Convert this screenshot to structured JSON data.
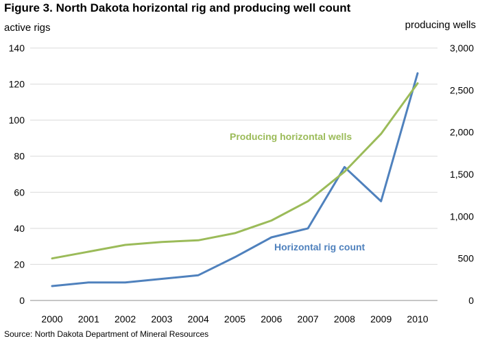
{
  "chart_data": {
    "type": "line",
    "title": "Figure 3. North Dakota horizontal rig and producing well count",
    "ylabel_left": "active rigs",
    "ylabel_right": "producing wells",
    "source": "Source:  North Dakota Department of Mineral Resources",
    "x": [
      "2000",
      "2001",
      "2002",
      "2003",
      "2004",
      "2005",
      "2006",
      "2007",
      "2008",
      "2009",
      "2010"
    ],
    "ylim_left": [
      0,
      140
    ],
    "ylim_right": [
      0,
      3000
    ],
    "yticks_left": [
      "0",
      "20",
      "40",
      "60",
      "80",
      "100",
      "120",
      "140"
    ],
    "yticks_right": [
      "0",
      "500",
      "1,000",
      "1,500",
      "2,000",
      "2,500",
      "3,000"
    ],
    "grid": true,
    "series": [
      {
        "name": "Horizontal rig count",
        "axis": "left",
        "color": "#4f81bd",
        "values": [
          8,
          10,
          10,
          12,
          14,
          24,
          35,
          40,
          74,
          55,
          126
        ]
      },
      {
        "name": "Producing horizontal wells",
        "axis": "right",
        "color": "#9bbb59",
        "values": [
          500,
          580,
          660,
          695,
          715,
          800,
          950,
          1180,
          1530,
          1980,
          2580
        ]
      }
    ]
  }
}
